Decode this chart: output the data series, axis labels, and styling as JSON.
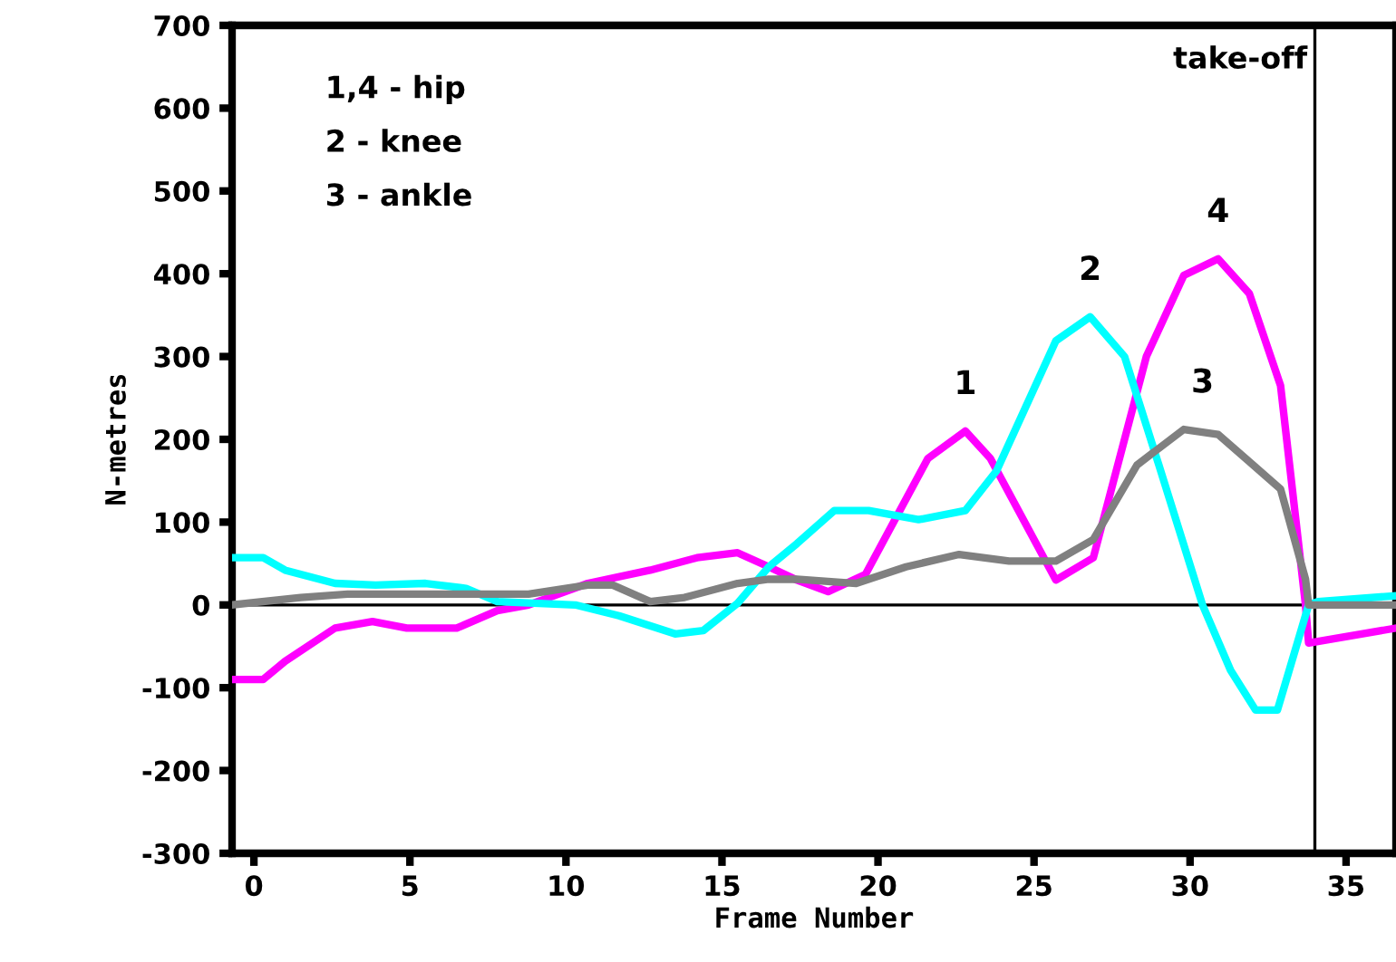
{
  "chart_data": {
    "type": "line",
    "xlabel": "Frame Number",
    "ylabel": "N-metres",
    "xlim": [
      -0.7,
      36.6
    ],
    "ylim": [
      -300,
      700
    ],
    "xticks": [
      0,
      5,
      10,
      15,
      20,
      25,
      30,
      35
    ],
    "yticks": [
      -300,
      -200,
      -100,
      0,
      100,
      200,
      300,
      400,
      500,
      600,
      700
    ],
    "grid": false,
    "legend": false,
    "marker": "none",
    "line_style": "solid",
    "series": [
      {
        "color": "#ff00ff",
        "x": [
          -0.7,
          0.3,
          1,
          2.6,
          3.8,
          4.9,
          6.5,
          7.8,
          8.8,
          10.7,
          12.7,
          14.2,
          15.5,
          16.5,
          17.4,
          18.4,
          19.6,
          21.6,
          22.8,
          23.6,
          25.7,
          26.9,
          28.6,
          29.8,
          30.9,
          31.9,
          32.9,
          33.7,
          33.8,
          36.6
        ],
        "values": [
          -90,
          -90,
          -68,
          -28,
          -20,
          -28,
          -28,
          -7,
          0,
          26,
          42,
          57,
          63,
          46,
          30,
          16,
          37,
          177,
          210,
          177,
          30,
          57,
          300,
          398,
          418,
          376,
          265,
          0,
          -46,
          -28
        ]
      },
      {
        "color": "#00ffff",
        "x": [
          -0.7,
          0.3,
          1,
          2.6,
          3.9,
          5.5,
          6.8,
          7.8,
          10.3,
          11.7,
          13.5,
          14.4,
          15.5,
          16.5,
          17.4,
          18.6,
          19.7,
          21.3,
          22.8,
          23.8,
          25.7,
          26.8,
          27.9,
          29,
          30.4,
          31.3,
          32.1,
          32.8,
          33.8,
          34.1,
          36.6
        ],
        "values": [
          57,
          57,
          42,
          26,
          24,
          26,
          20,
          4,
          0,
          -13,
          -35,
          -31,
          2,
          46,
          74,
          114,
          114,
          103,
          114,
          162,
          319,
          348,
          300,
          169,
          0,
          -79,
          -127,
          -127,
          0,
          4,
          11
        ]
      },
      {
        "color": "#808080",
        "x": [
          -0.7,
          1.5,
          3,
          8.8,
          10.7,
          11.5,
          12.7,
          13.8,
          15.5,
          16.5,
          17.4,
          19.3,
          20.9,
          22.6,
          24.2,
          25.7,
          26.9,
          28.3,
          29.8,
          30.9,
          32.9,
          33.7,
          33.8,
          36.6
        ],
        "values": [
          0,
          9,
          13,
          13,
          24,
          24,
          4,
          9,
          26,
          31,
          31,
          26,
          46,
          61,
          53,
          53,
          79,
          169,
          212,
          206,
          140,
          31,
          0,
          0
        ]
      }
    ],
    "ref_lines": [
      {
        "axis": "x",
        "value": 34,
        "label": "take-off",
        "color": "#000000"
      },
      {
        "axis": "y",
        "value": 0,
        "color": "#000000"
      }
    ],
    "annotations": [
      "1,4 - hip",
      "2 - knee",
      "3 - ankle",
      {
        "text": "1",
        "x": 22.8,
        "y": 210
      },
      {
        "text": "2",
        "x": 26.8,
        "y": 348
      },
      {
        "text": "3",
        "x": 30.4,
        "y": 212
      },
      {
        "text": "4",
        "x": 30.9,
        "y": 418
      }
    ]
  }
}
